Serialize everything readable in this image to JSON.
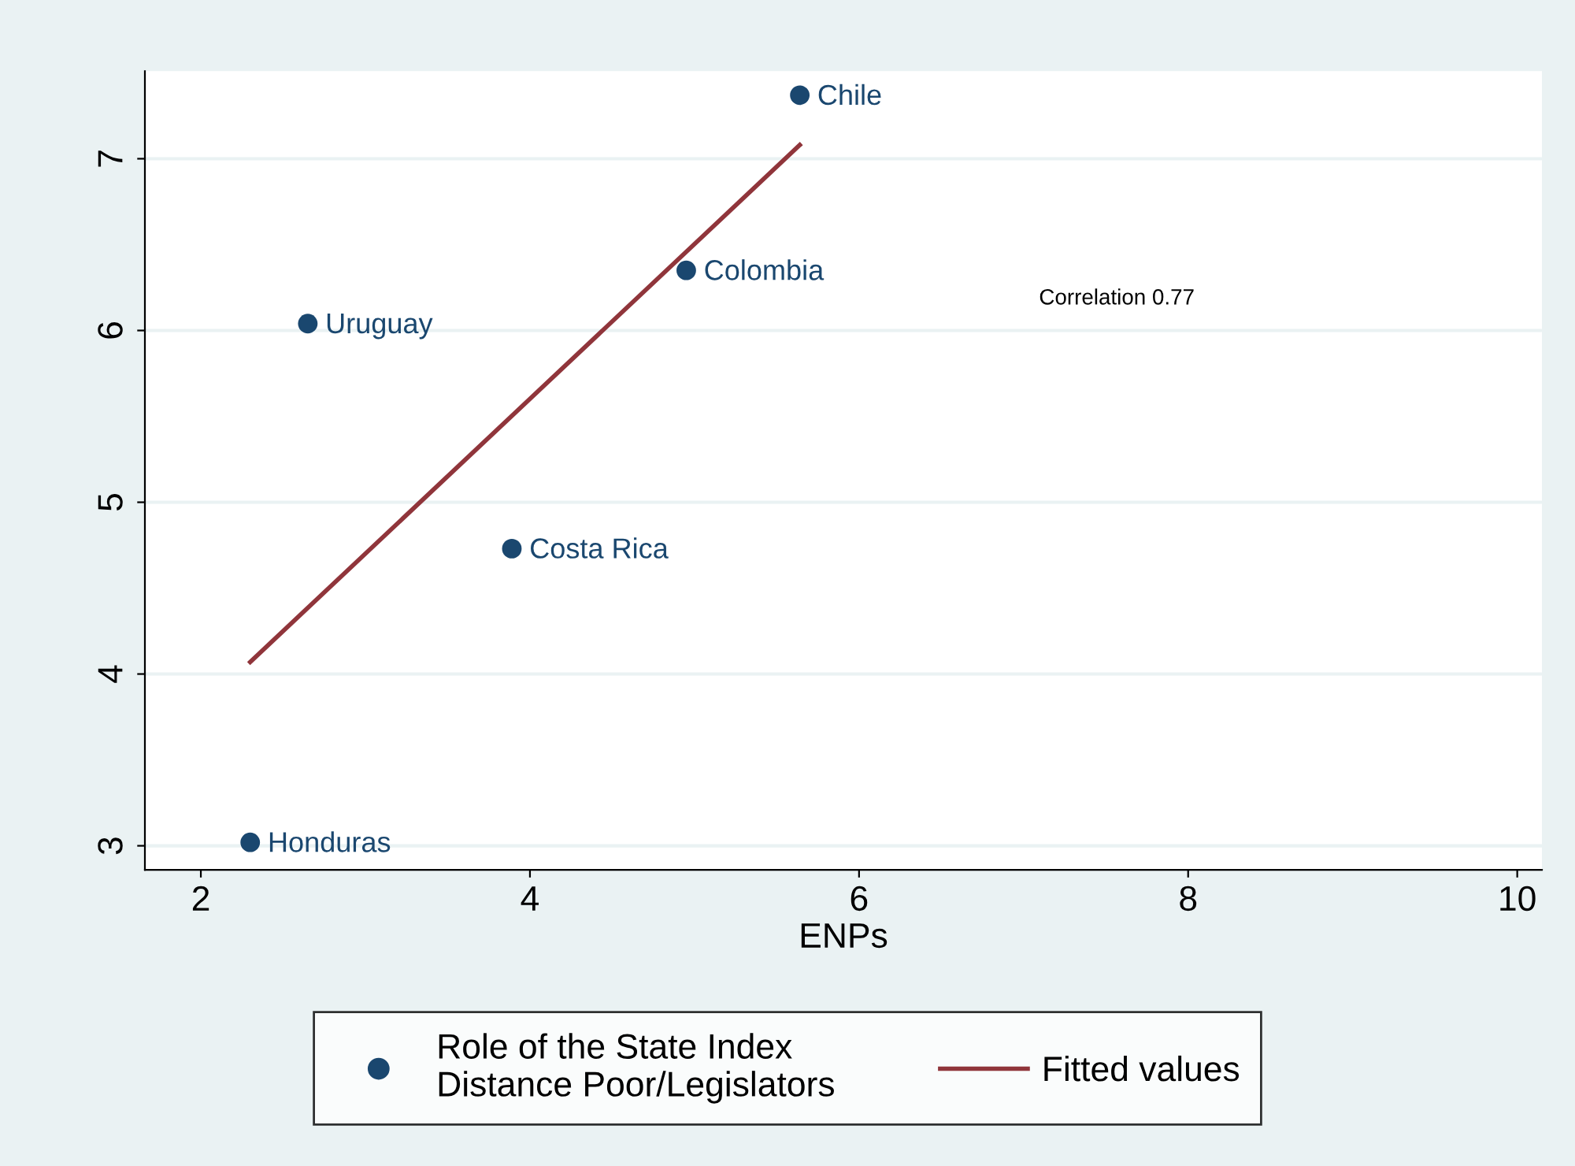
{
  "chart_data": {
    "type": "scatter",
    "xlabel": "ENPs",
    "series": [
      {
        "name": "Role of the State Index\nDistance Poor/Legislators",
        "marker": "circle",
        "color": "#1a476f",
        "x": [
          5.64,
          4.95,
          2.65,
          3.89,
          2.3
        ],
        "values": [
          7.37,
          6.35,
          6.04,
          4.73,
          3.02
        ]
      },
      {
        "name": "Fitted values",
        "type": "line",
        "color": "#90353b",
        "x": [
          2.3,
          5.64
        ],
        "values": [
          4.07,
          7.08
        ]
      }
    ],
    "annotations": [
      {
        "text": "Chile",
        "x": 5.64,
        "y": 7.37
      },
      {
        "text": "Colombia",
        "x": 4.95,
        "y": 6.35
      },
      {
        "text": "Uruguay",
        "x": 2.65,
        "y": 6.04
      },
      {
        "text": "Costa Rica",
        "x": 3.89,
        "y": 4.73
      },
      {
        "text": "Honduras",
        "x": 2.3,
        "y": 3.02
      },
      "Correlation 0.77"
    ],
    "xlim": [
      1.66,
      10.15
    ],
    "ylim": [
      2.86,
      7.51
    ],
    "xticks": [
      2,
      4,
      6,
      8,
      10
    ],
    "yticks": [
      3,
      4,
      5,
      6,
      7
    ],
    "grid": "y",
    "legend": "bottom"
  }
}
